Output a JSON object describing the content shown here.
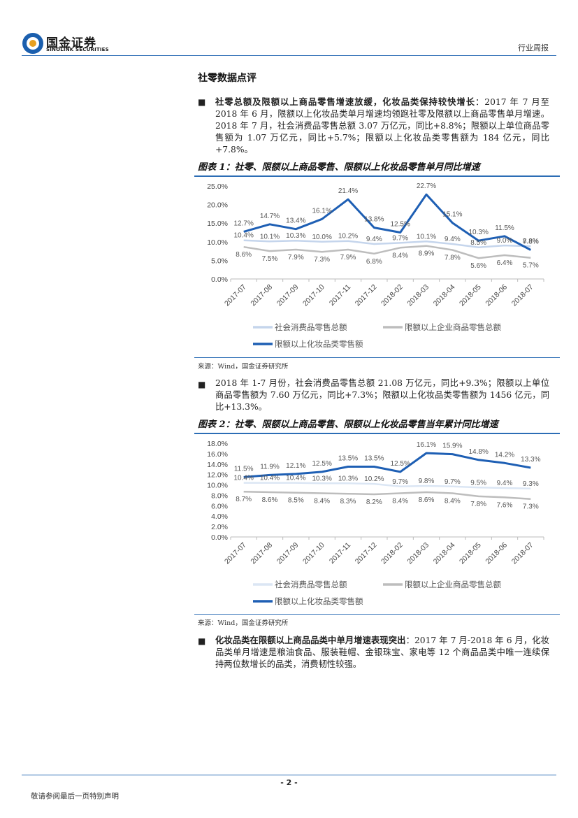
{
  "header": {
    "logo_cn": "国金证券",
    "logo_en": "SINOLINK SECURITIES",
    "report_type": "行业周报"
  },
  "section_title": "社零数据点评",
  "paragraphs": [
    {
      "bold": "社零总额及限额以上商品零售增速放缓，化妆品类保持较快增长",
      "text": "：2017 年 7 月至 2018 年 6 月，限额以上化妆品类单月增速均领跑社零及限额以上商品零售单月增速。2018 年 7 月，社会消费品零售总额 3.07 万亿元，同比+8.8%；限额以上单位商品零售额为 1.07 万亿元，同比+5.7%；限额以上化妆品类零售额为 184 亿元，同比+7.8%。"
    },
    {
      "bold": "",
      "text": "2018 年 1-7 月份，社会消费品零售总额 21.08 万亿元，同比+9.3%；限额以上单位商品零售额为 7.60 万亿元，同比+7.3%；限额以上化妆品类零售额为 1456 亿元，同比+13.3%。"
    },
    {
      "bold": "化妆品类在限额以上商品品类中单月增速表现突出",
      "text": "：2017 年 7 月-2018 年 6 月，化妆品类单月增速是粮油食品、服装鞋帽、金银珠宝、家电等 12 个商品品类中唯一连续保持两位数增长的品类，消费韧性较强。"
    }
  ],
  "figures": [
    {
      "title": "图表 1：社零、限额以上商品零售、限额以上化妆品零售单月同比增速",
      "source": "来源：Wind，国金证券研究所"
    },
    {
      "title": "图表 2：社零、限额以上商品零售、限额以上化妆品零售当年累计同比增速",
      "source": "来源：Wind，国金证券研究所"
    }
  ],
  "chart_data": [
    {
      "type": "line",
      "title": "社零、限额以上商品零售、限额以上化妆品零售单月同比增速",
      "categories": [
        "2017-07",
        "2017-08",
        "2017-09",
        "2017-10",
        "2017-11",
        "2017-12",
        "2018-02",
        "2018-03",
        "2018-04",
        "2018-05",
        "2018-06",
        "2018-07"
      ],
      "ylim": [
        0,
        25
      ],
      "yticks": [
        "0.0%",
        "5.0%",
        "10.0%",
        "15.0%",
        "20.0%",
        "25.0%"
      ],
      "series": [
        {
          "name": "社会消费品零售总额",
          "color": "#c5d5ec",
          "values": [
            10.4,
            10.1,
            10.3,
            10.0,
            10.2,
            9.4,
            9.7,
            10.1,
            9.4,
            8.5,
            9.0,
            8.8
          ],
          "labels": [
            "10.4%",
            "10.1%",
            "10.3%",
            "10.0%",
            "10.2%",
            "9.4%",
            "9.7%",
            "10.1%",
            "9.4%",
            "8.5%",
            "9.0%",
            "8.8%"
          ]
        },
        {
          "name": "限额以上企业商品零售总额",
          "color": "#bdbdbd",
          "values": [
            8.6,
            7.5,
            7.9,
            7.3,
            7.9,
            6.8,
            8.4,
            8.9,
            7.8,
            5.6,
            6.4,
            5.7
          ],
          "labels": [
            "8.6%",
            "7.5%",
            "7.9%",
            "7.3%",
            "7.9%",
            "6.8%",
            "8.4%",
            "8.9%",
            "7.8%",
            "5.6%",
            "6.4%",
            "5.7%"
          ]
        },
        {
          "name": "限额以上化妆品类零售额",
          "color": "#1e5fb4",
          "values": [
            12.7,
            14.7,
            13.4,
            16.1,
            21.4,
            13.8,
            12.5,
            22.7,
            15.1,
            10.3,
            11.5,
            7.8
          ],
          "labels": [
            "12.7%",
            "14.7%",
            "13.4%",
            "16.1%",
            "21.4%",
            "13.8%",
            "12.5%",
            "22.7%",
            "15.1%",
            "10.3%",
            "11.5%",
            "7.8%"
          ]
        }
      ]
    },
    {
      "type": "line",
      "title": "社零、限额以上商品零售、限额以上化妆品零售当年累计同比增速",
      "categories": [
        "2017-07",
        "2017-08",
        "2017-09",
        "2017-10",
        "2017-11",
        "2017-12",
        "2018-02",
        "2018-03",
        "2018-04",
        "2018-05",
        "2018-06",
        "2018-07"
      ],
      "ylim": [
        0,
        18
      ],
      "yticks": [
        "0.0%",
        "2.0%",
        "4.0%",
        "6.0%",
        "8.0%",
        "10.0%",
        "12.0%",
        "14.0%",
        "16.0%",
        "18.0%"
      ],
      "series": [
        {
          "name": "社会消费品零售总额",
          "color": "#dbe6f4",
          "values": [
            10.4,
            10.4,
            10.4,
            10.3,
            10.3,
            10.2,
            9.7,
            9.8,
            9.7,
            9.5,
            9.4,
            9.3
          ],
          "labels": [
            "10.4%",
            "10.4%",
            "10.4%",
            "10.3%",
            "10.3%",
            "10.2%",
            "9.7%",
            "9.8%",
            "9.7%",
            "9.5%",
            "9.4%",
            "9.3%"
          ]
        },
        {
          "name": "限额以上企业商品零售总额",
          "color": "#bdbdbd",
          "values": [
            8.7,
            8.6,
            8.5,
            8.4,
            8.3,
            8.2,
            8.4,
            8.6,
            8.4,
            7.8,
            7.6,
            7.3
          ],
          "labels": [
            "8.7%",
            "8.6%",
            "8.5%",
            "8.4%",
            "8.3%",
            "8.2%",
            "8.4%",
            "8.6%",
            "8.4%",
            "7.8%",
            "7.6%",
            "7.3%"
          ]
        },
        {
          "name": "限额以上化妆品类零售额",
          "color": "#1e5fb4",
          "values": [
            11.5,
            11.9,
            12.1,
            12.5,
            13.5,
            13.5,
            12.5,
            16.1,
            15.9,
            14.8,
            14.2,
            13.3
          ],
          "labels": [
            "11.5%",
            "11.9%",
            "12.1%",
            "12.5%",
            "13.5%",
            "13.5%",
            "12.5%",
            "16.1%",
            "15.9%",
            "14.8%",
            "14.2%",
            "13.3%"
          ]
        }
      ]
    }
  ],
  "footer": {
    "page_number": "- 2 -",
    "disclaimer": "敬请参阅最后一页特别声明"
  }
}
